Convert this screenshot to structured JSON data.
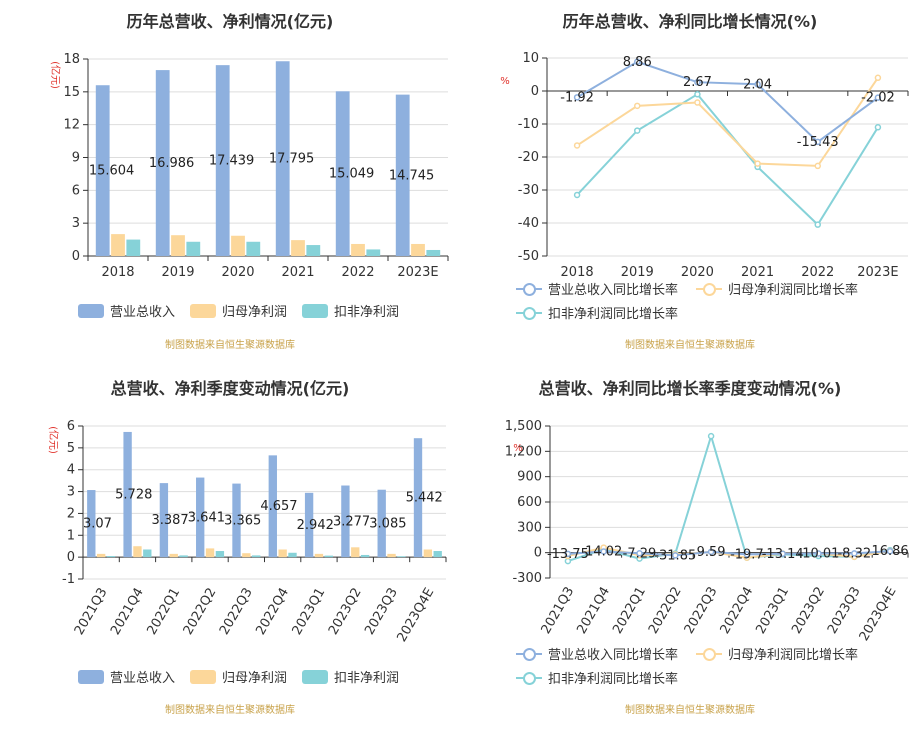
{
  "source_note": "制图数据来自恒生聚源数据库",
  "legend_bars": [
    "营业总收入",
    "归母净利润",
    "扣非净利润"
  ],
  "legend_lines": [
    "营业总收入同比增长率",
    "归母净利润同比增长率",
    "扣非净利润同比增长率"
  ],
  "colors": {
    "revenue": "#8eb0de",
    "netprofit": "#fcd79a",
    "deducted": "#86d2d8",
    "grid": "#dddddd",
    "axis": "#333333",
    "title": "#333333",
    "source": "#c8a24a",
    "unit": "#e0322b"
  },
  "chart_data": [
    {
      "id": "annual_bar",
      "type": "bar",
      "title": "历年总营收、净利情况(亿元)",
      "ylabel": "(亿元)",
      "categories": [
        "2018",
        "2019",
        "2020",
        "2021",
        "2022",
        "2023E"
      ],
      "ylim": [
        0,
        18
      ],
      "yticks": [
        0,
        3,
        6,
        9,
        12,
        15,
        18
      ],
      "ytick_labels": [
        "0",
        "3",
        "6",
        "9",
        "12",
        "15",
        "18"
      ],
      "series": [
        {
          "name": "营业总收入",
          "values": [
            15.604,
            16.986,
            17.439,
            17.795,
            15.049,
            14.745
          ],
          "labels": [
            "15.604",
            "16.986",
            "17.439",
            "17.795",
            "15.049",
            "14.745"
          ]
        },
        {
          "name": "归母净利润",
          "values": [
            2.0,
            1.9,
            1.85,
            1.45,
            1.1,
            1.1
          ]
        },
        {
          "name": "扣非净利润",
          "values": [
            1.5,
            1.3,
            1.3,
            1.0,
            0.6,
            0.55
          ]
        }
      ],
      "grid": true,
      "legend": "bottom"
    },
    {
      "id": "annual_line",
      "type": "line",
      "title": "历年总营收、净利同比增长情况(%)",
      "ylabel": "%",
      "categories": [
        "2018",
        "2019",
        "2020",
        "2021",
        "2022",
        "2023E"
      ],
      "ylim": [
        -50,
        10
      ],
      "yticks": [
        -50,
        -40,
        -30,
        -20,
        -10,
        0,
        10
      ],
      "ytick_labels": [
        "-50",
        "-40",
        "-30",
        "-20",
        "-10",
        "0",
        "10"
      ],
      "series": [
        {
          "name": "营业总收入同比增长率",
          "values": [
            -1.92,
            8.86,
            2.67,
            2.04,
            -15.43,
            -2.02
          ],
          "labels": [
            "-1.92",
            "8.86",
            "2.67",
            "2.04",
            "-15.43",
            "-2.02"
          ]
        },
        {
          "name": "归母净利润同比增长率",
          "values": [
            -16.5,
            -4.5,
            -3.5,
            -22,
            -22.7,
            4
          ]
        },
        {
          "name": "扣非净利润同比增长率",
          "values": [
            -31.5,
            -12,
            -1,
            -23,
            -40.5,
            -11
          ]
        }
      ],
      "grid": true,
      "legend": "bottom"
    },
    {
      "id": "quarter_bar",
      "type": "bar",
      "title": "总营收、净利季度变动情况(亿元)",
      "ylabel": "(亿元)",
      "categories": [
        "2021Q3",
        "2021Q4",
        "2022Q1",
        "2022Q2",
        "2022Q3",
        "2022Q4",
        "2023Q1",
        "2023Q2",
        "2023Q3",
        "2023Q4E"
      ],
      "ylim": [
        -1,
        6
      ],
      "yticks": [
        -1,
        0,
        1,
        2,
        3,
        4,
        5,
        6
      ],
      "ytick_labels": [
        "-1",
        "0",
        "1",
        "2",
        "3",
        "4",
        "5",
        "6"
      ],
      "series": [
        {
          "name": "营业总收入",
          "values": [
            3.07,
            5.728,
            3.387,
            3.641,
            3.365,
            4.657,
            2.942,
            3.277,
            3.085,
            5.442
          ],
          "labels": [
            "3.07",
            "5.728",
            "3.387",
            "3.641",
            "3.365",
            "4.657",
            "2.942",
            "3.277",
            "3.085",
            "5.442"
          ]
        },
        {
          "name": "归母净利润",
          "values": [
            0.15,
            0.5,
            0.15,
            0.4,
            0.18,
            0.35,
            0.15,
            0.45,
            0.15,
            0.35
          ]
        },
        {
          "name": "扣非净利润",
          "values": [
            0.05,
            0.35,
            0.08,
            0.28,
            0.08,
            0.2,
            0.07,
            0.1,
            0.04,
            0.28
          ]
        }
      ],
      "grid": true,
      "legend": "bottom"
    },
    {
      "id": "quarter_line",
      "type": "line",
      "title": "总营收、净利同比增长率季度变动情况(%)",
      "ylabel": "%",
      "categories": [
        "2021Q3",
        "2021Q4",
        "2022Q1",
        "2022Q2",
        "2022Q3",
        "2022Q4",
        "2023Q1",
        "2023Q2",
        "2023Q3",
        "2023Q4E"
      ],
      "ylim": [
        -300,
        1500
      ],
      "yticks": [
        -300,
        0,
        300,
        600,
        900,
        1200,
        1500
      ],
      "ytick_labels": [
        "-300",
        "0",
        "300",
        "600",
        "900",
        "1,200",
        "1,500"
      ],
      "series": [
        {
          "name": "营业总收入同比增长率",
          "values": [
            -13.75,
            14.02,
            -7.29,
            -31.85,
            9.59,
            -19.7,
            -13.14,
            -10.01,
            -8.32,
            16.86
          ],
          "labels": [
            "-13.75",
            "14.02",
            "-7.29",
            "-31.85",
            "9.59",
            "-19.7",
            "-13.14",
            "-10.01",
            "-8.32",
            "16.86"
          ]
        },
        {
          "name": "归母净利润同比增长率",
          "values": [
            -40,
            60,
            -30,
            -20,
            10,
            -60,
            -10,
            -10,
            -50,
            20
          ]
        },
        {
          "name": "扣非净利润同比增长率",
          "values": [
            -100,
            40,
            -70,
            -10,
            1380,
            -60,
            -20,
            -40,
            -50,
            30
          ]
        }
      ],
      "grid": true,
      "legend": "bottom"
    }
  ]
}
